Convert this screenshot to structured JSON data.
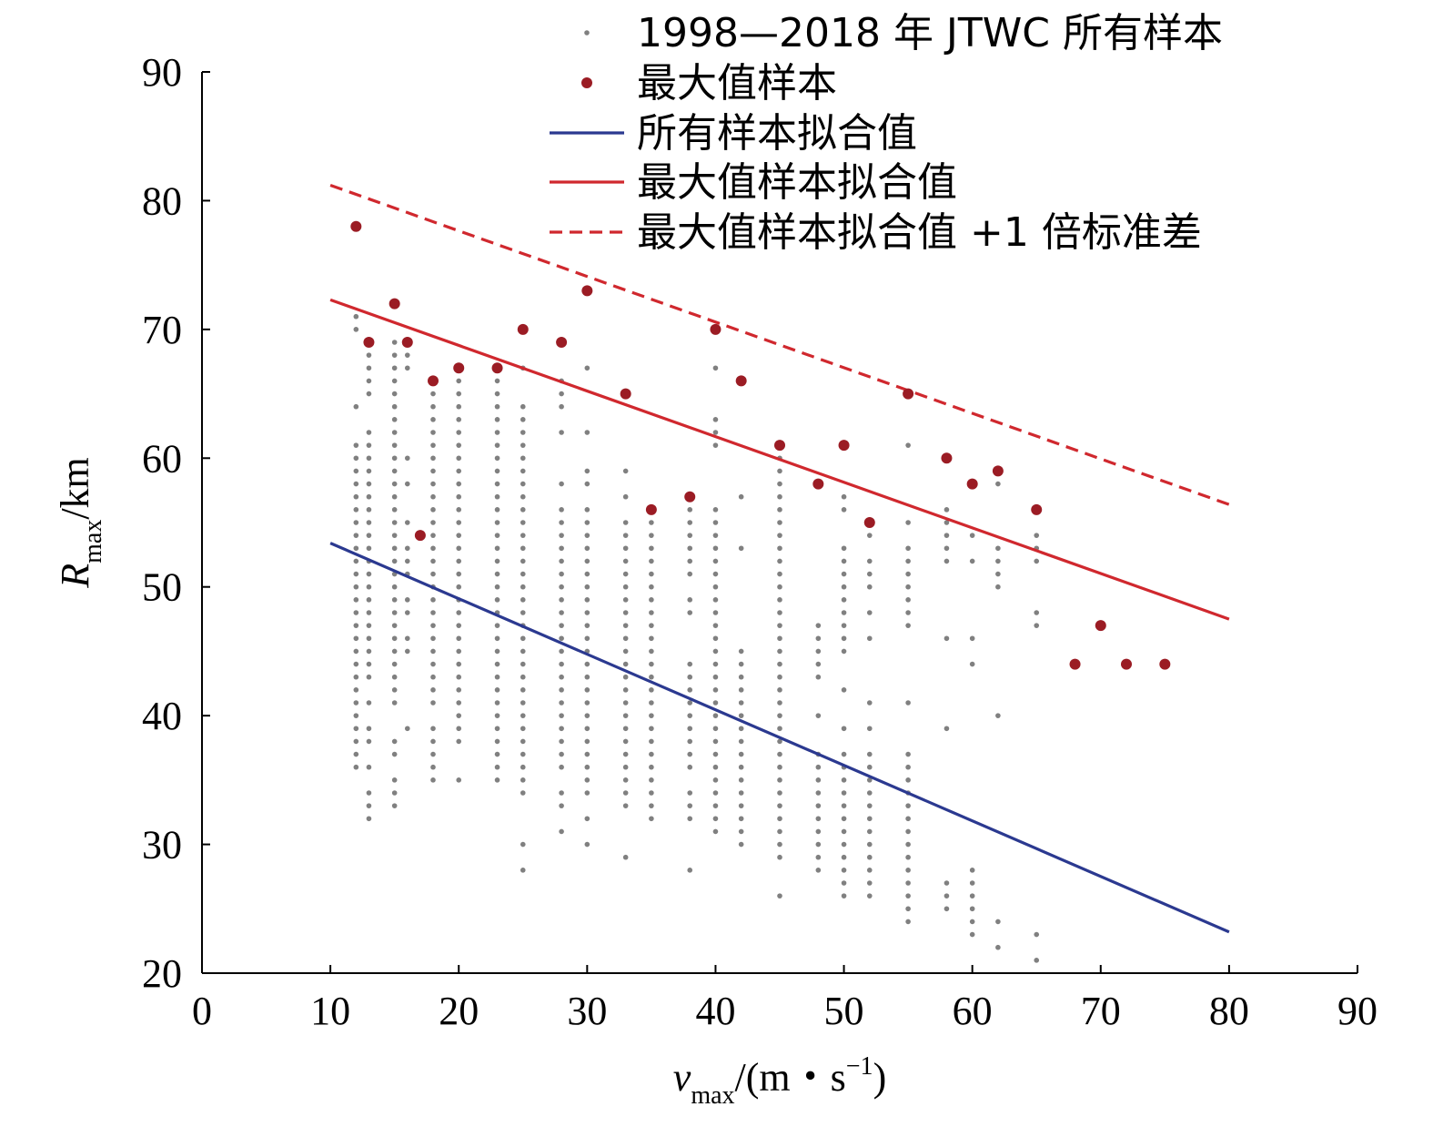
{
  "chart_data": {
    "type": "scatter",
    "title": "",
    "xlim": [
      0,
      90
    ],
    "ylim": [
      20,
      90
    ],
    "x_ticks": [
      0,
      10,
      20,
      30,
      40,
      50,
      60,
      70,
      80,
      90
    ],
    "y_ticks": [
      20,
      30,
      40,
      50,
      60,
      70,
      80,
      90
    ],
    "xlabel": {
      "var": "v",
      "sub": "max",
      "rest": "/(m・s",
      "sup": "−1",
      "close": ")"
    },
    "ylabel": {
      "var": "R",
      "sub": "max",
      "rest": "/km"
    },
    "legend_position": "top-right",
    "colors": {
      "all": "#808080",
      "max": "#9b1c24",
      "fit_all": "#2b3990",
      "fit_max": "#d0282e"
    },
    "legend": [
      {
        "key": "all",
        "label": "1998—2018 年 JTWC 所有样本",
        "marker": "small-dot"
      },
      {
        "key": "max",
        "label": "最大值样本",
        "marker": "dot"
      },
      {
        "key": "fit_all",
        "label": "所有样本拟合值",
        "marker": "line"
      },
      {
        "key": "fit_max",
        "label": "最大值样本拟合值",
        "marker": "line"
      },
      {
        "key": "fit_max_sd",
        "label": "最大值样本拟合值 +1 倍标准差",
        "marker": "dashed-line"
      }
    ],
    "all_samples": [
      {
        "x": 12,
        "y": [
          36,
          37,
          38,
          39,
          40,
          41,
          42,
          43,
          44,
          45,
          46,
          47,
          48,
          49,
          50,
          51,
          52,
          53,
          54,
          55,
          56,
          57,
          58,
          59,
          60,
          61,
          64,
          70,
          71
        ]
      },
      {
        "x": 13,
        "y": [
          32,
          33,
          34,
          36,
          38,
          39,
          41,
          43,
          44,
          45,
          46,
          47,
          48,
          49,
          50,
          51,
          52,
          53,
          54,
          55,
          56,
          57,
          58,
          59,
          60,
          61,
          62,
          65,
          66,
          67,
          68
        ]
      },
      {
        "x": 15,
        "y": [
          33,
          34,
          35,
          37,
          38,
          41,
          42,
          43,
          44,
          45,
          46,
          47,
          48,
          49,
          50,
          51,
          52,
          53,
          54,
          55,
          56,
          57,
          58,
          59,
          60,
          61,
          62,
          63,
          64,
          65,
          66,
          67,
          68,
          69
        ]
      },
      {
        "x": 16,
        "y": [
          39,
          45,
          46,
          48,
          49,
          51,
          52,
          53,
          55,
          58,
          60,
          67,
          68
        ]
      },
      {
        "x": 18,
        "y": [
          35,
          36,
          37,
          38,
          39,
          41,
          42,
          43,
          44,
          45,
          46,
          47,
          48,
          49,
          50,
          51,
          52,
          53,
          54,
          55,
          56,
          57,
          58,
          59,
          60,
          61,
          62,
          63,
          64,
          65
        ]
      },
      {
        "x": 20,
        "y": [
          35,
          38,
          39,
          40,
          41,
          42,
          43,
          44,
          45,
          46,
          47,
          48,
          49,
          50,
          51,
          52,
          53,
          54,
          55,
          56,
          57,
          58,
          59,
          60,
          61,
          62,
          63,
          64,
          65,
          66
        ]
      },
      {
        "x": 23,
        "y": [
          35,
          36,
          37,
          38,
          39,
          40,
          41,
          42,
          43,
          44,
          45,
          46,
          47,
          48,
          49,
          50,
          51,
          52,
          53,
          54,
          55,
          56,
          57,
          58,
          59,
          60,
          61,
          62,
          63,
          64,
          65,
          66
        ]
      },
      {
        "x": 25,
        "y": [
          28,
          30,
          34,
          35,
          36,
          37,
          38,
          39,
          40,
          41,
          42,
          43,
          44,
          45,
          46,
          47,
          48,
          49,
          50,
          51,
          52,
          53,
          54,
          55,
          56,
          57,
          58,
          59,
          60,
          61,
          62,
          63,
          64,
          67
        ]
      },
      {
        "x": 28,
        "y": [
          31,
          33,
          34,
          36,
          37,
          38,
          39,
          40,
          41,
          42,
          43,
          44,
          45,
          46,
          47,
          48,
          49,
          50,
          51,
          52,
          53,
          54,
          55,
          56,
          58,
          62,
          64,
          65,
          66
        ]
      },
      {
        "x": 30,
        "y": [
          30,
          32,
          34,
          35,
          36,
          37,
          38,
          39,
          40,
          41,
          42,
          43,
          44,
          45,
          46,
          47,
          48,
          49,
          50,
          51,
          52,
          53,
          54,
          55,
          56,
          58,
          59,
          62,
          67
        ]
      },
      {
        "x": 33,
        "y": [
          29,
          33,
          34,
          35,
          36,
          37,
          38,
          39,
          40,
          41,
          42,
          43,
          44,
          45,
          46,
          47,
          48,
          49,
          50,
          51,
          52,
          53,
          54,
          55,
          57,
          59
        ]
      },
      {
        "x": 35,
        "y": [
          32,
          33,
          34,
          35,
          36,
          37,
          38,
          39,
          40,
          41,
          42,
          43,
          44,
          45,
          46,
          47,
          48,
          49,
          50,
          51,
          52,
          53,
          54,
          55
        ]
      },
      {
        "x": 38,
        "y": [
          28,
          32,
          33,
          34,
          36,
          37,
          38,
          39,
          40,
          41,
          42,
          43,
          44,
          48,
          49,
          51,
          52,
          53,
          54,
          55,
          56
        ]
      },
      {
        "x": 40,
        "y": [
          31,
          32,
          33,
          34,
          35,
          36,
          37,
          38,
          39,
          40,
          41,
          42,
          43,
          44,
          45,
          46,
          47,
          48,
          49,
          50,
          51,
          52,
          53,
          54,
          55,
          56,
          61,
          62,
          63,
          67
        ]
      },
      {
        "x": 42,
        "y": [
          30,
          31,
          32,
          33,
          34,
          35,
          36,
          37,
          38,
          39,
          40,
          41,
          42,
          43,
          44,
          45,
          53,
          57
        ]
      },
      {
        "x": 45,
        "y": [
          26,
          29,
          30,
          31,
          32,
          33,
          34,
          35,
          36,
          37,
          38,
          39,
          40,
          41,
          42,
          43,
          44,
          45,
          46,
          47,
          48,
          49,
          50,
          51,
          52,
          53,
          54,
          55,
          56,
          57,
          58,
          59,
          60
        ]
      },
      {
        "x": 48,
        "y": [
          28,
          29,
          30,
          31,
          32,
          33,
          34,
          35,
          36,
          37,
          40,
          43,
          44,
          45,
          46,
          47
        ]
      },
      {
        "x": 50,
        "y": [
          26,
          27,
          28,
          29,
          30,
          31,
          32,
          33,
          34,
          35,
          36,
          37,
          39,
          42,
          45,
          46,
          47,
          48,
          49,
          50,
          51,
          52,
          53,
          56,
          57
        ]
      },
      {
        "x": 52,
        "y": [
          26,
          27,
          28,
          29,
          30,
          31,
          32,
          33,
          34,
          35,
          36,
          37,
          39,
          41,
          46,
          48,
          50,
          51,
          52,
          54
        ]
      },
      {
        "x": 55,
        "y": [
          24,
          25,
          26,
          27,
          28,
          29,
          30,
          31,
          32,
          33,
          34,
          35,
          36,
          37,
          41,
          47,
          48,
          49,
          50,
          51,
          52,
          53,
          55,
          61
        ]
      },
      {
        "x": 58,
        "y": [
          25,
          26,
          27,
          39,
          46,
          52,
          53,
          54,
          55,
          56
        ]
      },
      {
        "x": 60,
        "y": [
          23,
          24,
          25,
          26,
          27,
          28,
          44,
          46,
          52,
          54
        ]
      },
      {
        "x": 62,
        "y": [
          22,
          24,
          40,
          50,
          51,
          52,
          53,
          58
        ]
      },
      {
        "x": 65,
        "y": [
          21,
          23,
          47,
          48,
          52,
          53,
          54
        ]
      }
    ],
    "max_samples": {
      "x": [
        12,
        13,
        15,
        16,
        17,
        18,
        20,
        23,
        25,
        28,
        30,
        33,
        35,
        38,
        40,
        42,
        45,
        48,
        50,
        52,
        55,
        58,
        60,
        62,
        65,
        68,
        70,
        72,
        75
      ],
      "y": [
        78,
        69,
        72,
        69,
        54,
        66,
        67,
        67,
        70,
        69,
        73,
        65,
        56,
        57,
        70,
        66,
        61,
        58,
        61,
        55,
        65,
        60,
        58,
        59,
        56,
        44,
        47,
        44,
        44
      ]
    },
    "fit_all": {
      "x": [
        10,
        80
      ],
      "y": [
        53.4,
        23.2
      ]
    },
    "fit_max": {
      "x": [
        10,
        80
      ],
      "y": [
        72.3,
        47.5
      ]
    },
    "fit_max_sd": {
      "x": [
        10,
        80
      ],
      "y": [
        81.2,
        56.4
      ]
    }
  }
}
